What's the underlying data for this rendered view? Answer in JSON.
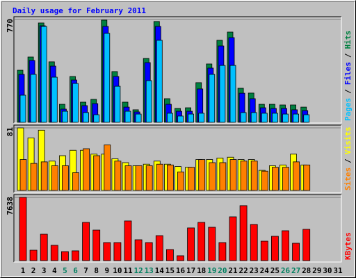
{
  "chart_data": {
    "type": "bar",
    "title": "Daily usage for February 2011",
    "legend_separator": "/",
    "categories": [
      "1",
      "2",
      "3",
      "4",
      "5",
      "6",
      "7",
      "8",
      "9",
      "10",
      "11",
      "12",
      "13",
      "14",
      "15",
      "16",
      "17",
      "18",
      "19",
      "20",
      "21",
      "22",
      "23",
      "24",
      "25",
      "26",
      "27",
      "28",
      "29",
      "30",
      "31"
    ],
    "category_colors": [
      "#000000",
      "#000000",
      "#000000",
      "#000000",
      "#008060",
      "#008060",
      "#000000",
      "#000000",
      "#000000",
      "#000000",
      "#000000",
      "#008060",
      "#008060",
      "#000000",
      "#000000",
      "#000000",
      "#000000",
      "#000000",
      "#008060",
      "#008060",
      "#000000",
      "#000000",
      "#000000",
      "#000000",
      "#000000",
      "#008060",
      "#008060",
      "#000000",
      "#000000",
      "#000000",
      "#000000"
    ],
    "panels": [
      {
        "ylim": [
          0,
          770
        ],
        "yticks": [
          770
        ],
        "series": [
          {
            "name": "Hits",
            "color": "#008040",
            "values": [
              390,
              489,
              744,
              453,
              135,
              343,
              151,
              172,
              765,
              380,
              151,
              94,
              478,
              755,
              177,
              104,
              109,
              297,
              437,
              614,
              676,
              255,
              219,
              135,
              135,
              130,
              130,
              114,
              null,
              null,
              null
            ]
          },
          {
            "name": "Files",
            "color": "#0000ff",
            "values": [
              359,
              463,
              723,
              421,
              99,
              317,
              125,
              140,
              718,
              343,
              114,
              78,
              447,
              718,
              135,
              83,
              83,
              250,
              406,
              572,
              634,
              218,
              177,
              109,
              104,
              104,
              94,
              88,
              null,
              null,
              null
            ]
          },
          {
            "name": "Pages",
            "color": "#00c0ff",
            "values": [
              203,
              359,
              718,
              338,
              83,
              291,
              73,
              57,
              666,
              270,
              83,
              62,
              312,
              614,
              68,
              47,
              62,
              68,
              359,
              426,
              426,
              73,
              73,
              68,
              68,
              62,
              62,
              57,
              null,
              null,
              null
            ]
          }
        ]
      },
      {
        "ylim": [
          0,
          81
        ],
        "yticks": [
          81
        ],
        "series": [
          {
            "name": "Visits",
            "color": "#ffff00",
            "values": [
              81,
              68,
              78,
              38,
              45,
              52,
              52,
              47,
              47,
              41,
              36,
              32,
              34,
              38,
              34,
              31,
              30,
              40,
              40,
              42,
              43,
              40,
              40,
              26,
              32,
              33,
              47,
              33,
              null,
              null,
              null
            ]
          },
          {
            "name": "Sites",
            "color": "#ff8000",
            "values": [
              40,
              35,
              37,
              32,
              32,
              23,
              54,
              45,
              59,
              38,
              32,
              32,
              32,
              34,
              33,
              24,
              30,
              40,
              36,
              36,
              40,
              38,
              38,
              25,
              30,
              30,
              37,
              33,
              null,
              null,
              null
            ]
          }
        ]
      },
      {
        "ylim": [
          0,
          7638
        ],
        "yticks": [
          7638
        ],
        "series": [
          {
            "name": "KBytes",
            "color": "#ff0000",
            "values": [
              7638,
              1260,
              3190,
              1850,
              1090,
              1180,
              4620,
              3690,
              2180,
              2180,
              4790,
              2520,
              2180,
              3020,
              1340,
              590,
              3950,
              4620,
              4030,
              2180,
              5290,
              6640,
              4370,
              2350,
              2940,
              3610,
              2100,
              3780,
              null,
              null,
              null
            ]
          }
        ]
      }
    ]
  }
}
